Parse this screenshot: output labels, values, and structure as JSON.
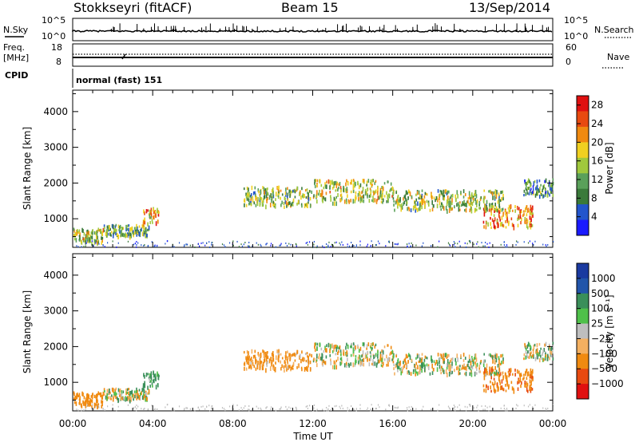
{
  "header": {
    "station": "Stokkseyri (fitACF)",
    "beam": "Beam 15",
    "date": "13/Sep/2014"
  },
  "status_panels": {
    "left_labels": {
      "nsky": "N.Sky",
      "freq": "Freq.",
      "mhz": "[MHz]",
      "cpid": "CPID"
    },
    "right_labels": {
      "nsearch": "N.Search",
      "nave": "Nave"
    },
    "nsky_ticks": [
      "10^5",
      "10^0"
    ],
    "nsearch_ticks": [
      "10^5",
      "10^0"
    ],
    "freq_ticks": [
      "18",
      "8"
    ],
    "nave_ticks": [
      "60",
      "0"
    ],
    "cpid_text": "normal (fast) 151"
  },
  "colors": {
    "power_scale": [
      "#1a1aff",
      "#2255cc",
      "#3a7a3a",
      "#5aa05a",
      "#a0c83c",
      "#f0d020",
      "#f08a10",
      "#e84a10",
      "#e01010"
    ],
    "velocity_scale": [
      "#e01010",
      "#e84a10",
      "#f08a10",
      "#f4b060",
      "#bebebe",
      "#4fc04a",
      "#3a8f5a",
      "#2255aa",
      "#1a3aa0"
    ]
  },
  "chart_data": [
    {
      "type": "heatmap",
      "panel": "power",
      "ylabel": "Slant Range [km]",
      "xlabel": "",
      "x_ticks": [
        "00:00",
        "04:00",
        "08:00",
        "12:00",
        "16:00",
        "20:00",
        "00:00"
      ],
      "y_ticks": [
        1000,
        2000,
        3000,
        4000
      ],
      "ylim": [
        200,
        4600
      ],
      "colorbar": {
        "label": "Power [dB]",
        "ticks": [
          4,
          8,
          12,
          16,
          20,
          24,
          28
        ],
        "range": [
          0,
          30
        ]
      },
      "echo_bands": [
        {
          "t0": 0.0,
          "t1": 1.5,
          "r_center": 550,
          "r_width": 250,
          "value": 16
        },
        {
          "t0": 1.5,
          "t1": 3.8,
          "r_center": 700,
          "r_width": 200,
          "value": 12
        },
        {
          "t0": 3.5,
          "t1": 4.3,
          "r_center": 1100,
          "r_width": 300,
          "value": 20
        },
        {
          "t0": 8.5,
          "t1": 12.0,
          "r_center": 1650,
          "r_width": 350,
          "value": 14
        },
        {
          "t0": 12.0,
          "t1": 16.0,
          "r_center": 1800,
          "r_width": 400,
          "value": 16
        },
        {
          "t0": 16.0,
          "t1": 21.5,
          "r_center": 1550,
          "r_width": 350,
          "value": 14
        },
        {
          "t0": 20.5,
          "t1": 23.0,
          "r_center": 1100,
          "r_width": 400,
          "value": 22
        },
        {
          "t0": 22.5,
          "t1": 24.0,
          "r_center": 1900,
          "r_width": 300,
          "value": 10
        }
      ]
    },
    {
      "type": "heatmap",
      "panel": "velocity",
      "ylabel": "Slant Range [km]",
      "xlabel": "Time UT",
      "x_ticks": [
        "00:00",
        "04:00",
        "08:00",
        "12:00",
        "16:00",
        "20:00",
        "00:00"
      ],
      "y_ticks": [
        1000,
        2000,
        3000,
        4000
      ],
      "ylim": [
        200,
        4600
      ],
      "colorbar": {
        "label": "Velocity [m s⁻¹]",
        "ticks": [
          "1000",
          "500",
          "100",
          "25",
          "−25",
          "−100",
          "−500",
          "−1000"
        ]
      },
      "echo_bands": [
        {
          "t0": 0.0,
          "t1": 1.5,
          "r_center": 550,
          "r_width": 250,
          "value": -300
        },
        {
          "t0": 1.5,
          "t1": 3.8,
          "r_center": 700,
          "r_width": 200,
          "value": 0
        },
        {
          "t0": 3.5,
          "t1": 4.3,
          "r_center": 1100,
          "r_width": 300,
          "value": 200
        },
        {
          "t0": 8.5,
          "t1": 12.0,
          "r_center": 1650,
          "r_width": 350,
          "value": -200
        },
        {
          "t0": 12.0,
          "t1": 16.0,
          "r_center": 1800,
          "r_width": 400,
          "value": 0
        },
        {
          "t0": 16.0,
          "t1": 21.5,
          "r_center": 1550,
          "r_width": 350,
          "value": 0
        },
        {
          "t0": 20.5,
          "t1": 23.0,
          "r_center": 1100,
          "r_width": 400,
          "value": -400
        },
        {
          "t0": 22.5,
          "t1": 24.0,
          "r_center": 1900,
          "r_width": 300,
          "value": 50
        }
      ]
    }
  ]
}
